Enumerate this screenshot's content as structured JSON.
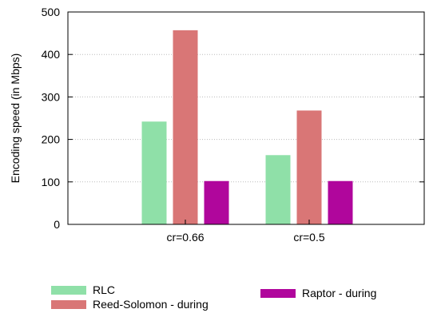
{
  "chart_data": {
    "type": "bar",
    "categories": [
      "cr=0.66",
      "cr=0.5"
    ],
    "series": [
      {
        "name": "RLC",
        "values": [
          242,
          163
        ],
        "color": "#8fe0a8"
      },
      {
        "name": "Reed-Solomon - during",
        "values": [
          457,
          268
        ],
        "color": "#d97676"
      },
      {
        "name": "Raptor - during",
        "values": [
          102,
          102
        ],
        "color": "#b0069c"
      }
    ],
    "title": "",
    "xlabel": "",
    "ylabel": "Encoding speed (in Mbps)",
    "ylim": [
      0,
      500
    ],
    "yticks": [
      0,
      100,
      200,
      300,
      400,
      500
    ],
    "grid": true,
    "legend_position": "bottom"
  }
}
